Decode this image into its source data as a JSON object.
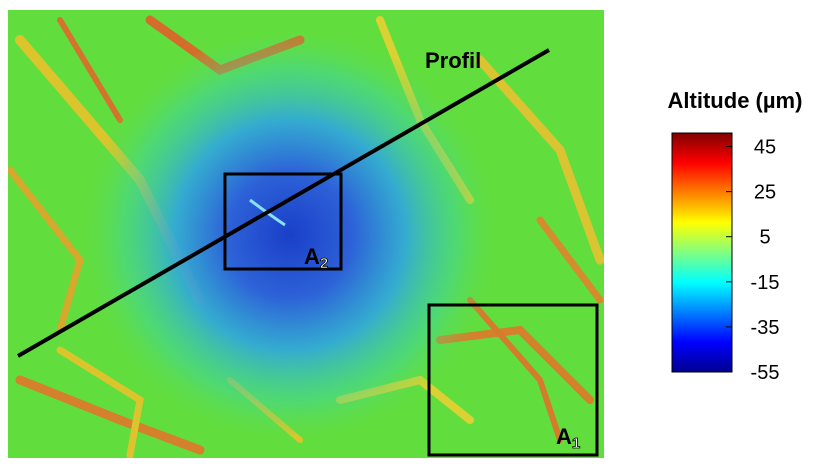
{
  "chart_data": {
    "type": "heatmap",
    "colorbar": {
      "title": "Altitude (µm)",
      "lim": [
        -55,
        51
      ],
      "ticks": [
        45,
        25,
        5,
        -15,
        -35,
        -55
      ],
      "colormap": "jet"
    },
    "annotations": [
      {
        "text": "Profil"
      },
      {
        "text": "A",
        "subscript": "2"
      },
      {
        "text": "A",
        "subscript": "1"
      }
    ]
  }
}
